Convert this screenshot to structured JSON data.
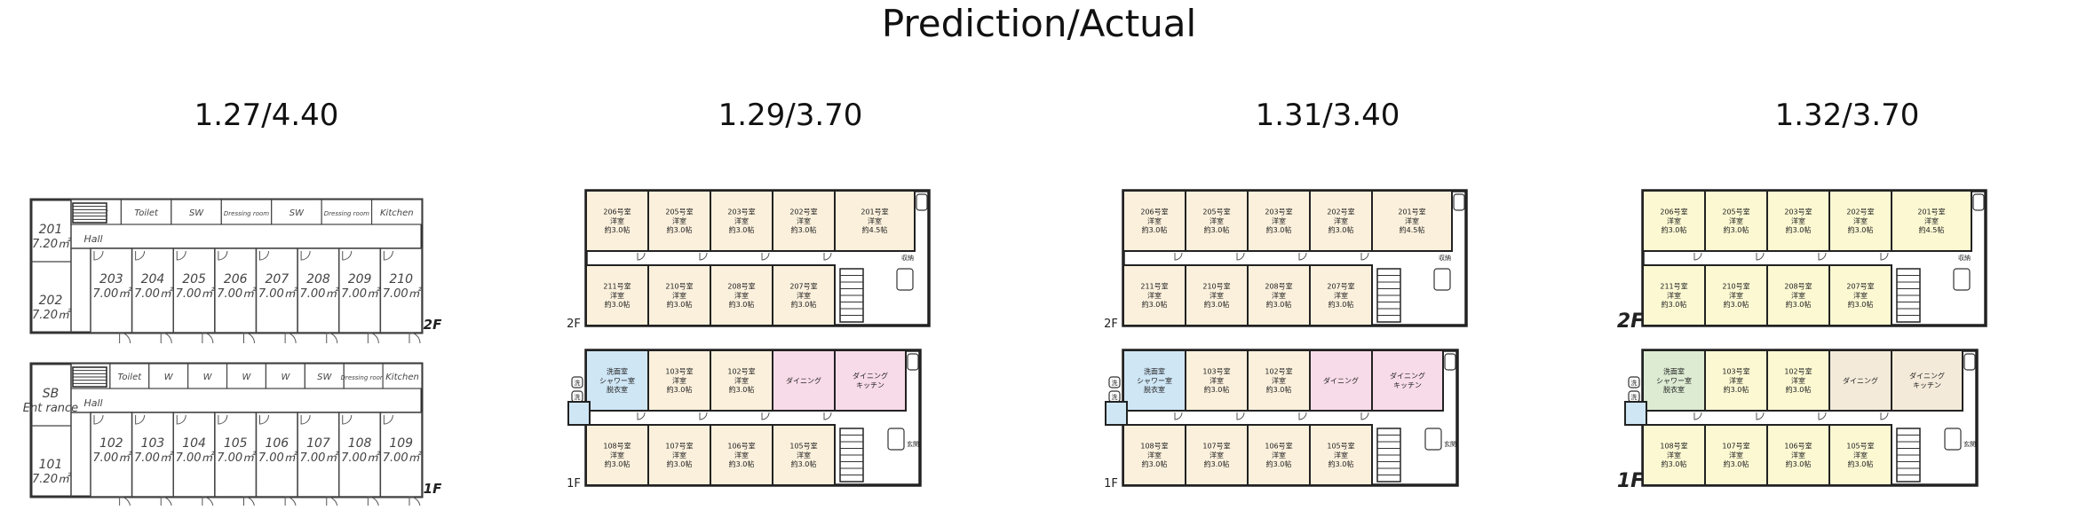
{
  "figure": {
    "title": "Prediction/Actual"
  },
  "panels": [
    {
      "label": "1.27/4.40",
      "style": "line",
      "floors": [
        {
          "level": "2F",
          "service": [
            "Toilet",
            "Toilet",
            "SW",
            "Dressing room",
            "SW",
            "Dressing room",
            "Kitchen"
          ],
          "hall": "Hall",
          "corner": {
            "no": "201",
            "area": "7.20㎡"
          },
          "lower_corner": {
            "no": "202",
            "area": "7.20㎡"
          },
          "rooms": [
            {
              "no": "203",
              "area": "7.00㎡"
            },
            {
              "no": "204",
              "area": "7.00㎡"
            },
            {
              "no": "205",
              "area": "7.00㎡"
            },
            {
              "no": "206",
              "area": "7.00㎡"
            },
            {
              "no": "207",
              "area": "7.00㎡"
            },
            {
              "no": "208",
              "area": "7.00㎡"
            },
            {
              "no": "209",
              "area": "7.00㎡"
            },
            {
              "no": "210",
              "area": "7.00㎡"
            }
          ]
        },
        {
          "level": "1F",
          "service": [
            "Toilet",
            "Toilet",
            "W",
            "W",
            "W",
            "W",
            "SW",
            "Dressing room",
            "Kitchen"
          ],
          "hall": "Hall",
          "corner": {
            "no": "SB",
            "area": "Ent rance"
          },
          "lower_corner": {
            "no": "101",
            "area": "7.20㎡"
          },
          "rooms": [
            {
              "no": "102",
              "area": "7.00㎡"
            },
            {
              "no": "103",
              "area": "7.00㎡"
            },
            {
              "no": "104",
              "area": "7.00㎡"
            },
            {
              "no": "105",
              "area": "7.00㎡"
            },
            {
              "no": "106",
              "area": "7.00㎡"
            },
            {
              "no": "107",
              "area": "7.00㎡"
            },
            {
              "no": "108",
              "area": "7.00㎡"
            },
            {
              "no": "109",
              "area": "7.00㎡"
            }
          ]
        }
      ]
    },
    {
      "label": "1.29/3.70",
      "style": "colored",
      "floors": [
        {
          "level": "2F",
          "top": [
            "206号室 洋室 約3.0帖",
            "205号室 洋室 約3.0帖",
            "203号室 洋室 約3.0帖",
            "202号室 洋室 約3.0帖",
            "201号室 洋室 約4.5帖"
          ],
          "bottom": [
            "211号室 洋室 約3.0帖",
            "210号室 洋室 約3.0帖",
            "208号室 洋室 約3.0帖",
            "207号室 洋室 約3.0帖"
          ],
          "extra": [
            "収納"
          ]
        },
        {
          "level": "1F",
          "top": [
            "洗面室 シャワー室 脱衣室",
            "103号室 洋室 約3.0帖",
            "102号室 洋室 約3.0帖",
            "ダイニング",
            "ダイニング キッチン"
          ],
          "bottom": [
            "108号室 洋室 約3.0帖",
            "107号室 洋室 約3.0帖",
            "106号室 洋室 約3.0帖",
            "105号室 洋室 約3.0帖"
          ],
          "extra": [
            "洗",
            "洗",
            "玄関"
          ]
        }
      ]
    },
    {
      "label": "1.31/3.40",
      "style": "colored",
      "floors": [
        {
          "level": "2F",
          "top": [
            "206号室 洋室 約3.0帖",
            "205号室 洋室 約3.0帖",
            "203号室 洋室 約3.0帖",
            "202号室 洋室 約3.0帖",
            "201号室 洋室 約4.5帖"
          ],
          "bottom": [
            "211号室 洋室 約3.0帖",
            "210号室 洋室 約3.0帖",
            "208号室 洋室 約3.0帖",
            "207号室 洋室 約3.0帖"
          ],
          "extra": [
            "収納"
          ]
        },
        {
          "level": "1F",
          "top": [
            "洗面室 シャワー室 脱衣室",
            "103号室 洋室 約3.0帖",
            "102号室 洋室 約3.0帖",
            "ダイニング",
            "ダイニング キッチン"
          ],
          "bottom": [
            "108号室 洋室 約3.0帖",
            "107号室 洋室 約3.0帖",
            "106号室 洋室 約3.0帖",
            "105号室 洋室 約3.0帖"
          ],
          "extra": [
            "洗",
            "洗",
            "玄関"
          ]
        }
      ]
    },
    {
      "label": "1.32/3.70",
      "style": "colored",
      "floors": [
        {
          "level": "2F",
          "top": [
            "206号室 洋室 約3.0帖",
            "205号室 洋室 約3.0帖",
            "203号室 洋室 約3.0帖",
            "202号室 洋室 約3.0帖",
            "201号室 洋室 約4.5帖"
          ],
          "bottom": [
            "211号室 洋室 約3.0帖",
            "210号室 洋室 約3.0帖",
            "208号室 洋室 約3.0帖",
            "207号室 洋室 約3.0帖"
          ],
          "extra": [
            "収納"
          ]
        },
        {
          "level": "1F",
          "top": [
            "洗面室 シャワー室 脱衣室",
            "103号室 洋室 約3.0帖",
            "102号室 洋室 約3.0帖",
            "ダイニング",
            "ダイニング キッチン"
          ],
          "bottom": [
            "108号室 洋室 約3.0帖",
            "107号室 洋室 約3.0帖",
            "106号室 洋室 約3.0帖",
            "105号室 洋室 約3.0帖"
          ],
          "extra": [
            "洗",
            "洗",
            "玄関"
          ]
        }
      ]
    }
  ],
  "colors": {
    "wall": "#222222",
    "room_beige": "#fbf0dc",
    "room_pink": "#f8dbe8",
    "room_blue": "#cfe6f5",
    "room_yellow": "#fbf8d2",
    "room_green": "#dcebd2",
    "line_plan_text": "#444444"
  }
}
